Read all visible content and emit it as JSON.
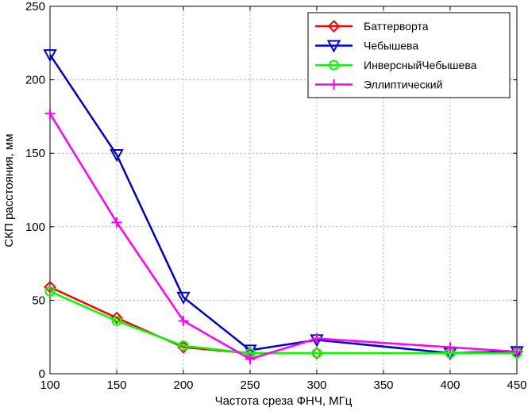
{
  "chart_data": {
    "type": "line",
    "title": "",
    "xlabel": "Частота среза ФНЧ, МГц",
    "ylabel": "СКП расстояния, мм",
    "xlim": [
      100,
      450
    ],
    "ylim": [
      0,
      250
    ],
    "xticks": [
      100,
      150,
      200,
      250,
      300,
      350,
      400,
      450
    ],
    "yticks": [
      0,
      50,
      100,
      150,
      200,
      250
    ],
    "grid": true,
    "legend_position": "top-right",
    "series": [
      {
        "name": "Баттерворта",
        "color": "#ff0000",
        "marker": "diamond",
        "x": [
          100,
          150,
          200,
          250,
          300,
          400,
          450
        ],
        "y": [
          59,
          38,
          18,
          14,
          14,
          14,
          15
        ]
      },
      {
        "name": "Чебышева",
        "color": "#0000cc",
        "marker": "triangle-down",
        "x": [
          100,
          150,
          200,
          250,
          300,
          400,
          450
        ],
        "y": [
          217,
          149,
          52,
          16,
          23,
          14,
          15
        ]
      },
      {
        "name": "ИнверсныйЧебышева",
        "color": "#00ff00",
        "marker": "circle",
        "x": [
          100,
          150,
          200,
          250,
          300,
          400,
          450
        ],
        "y": [
          56,
          36,
          19,
          14,
          14,
          14,
          14
        ]
      },
      {
        "name": "Эллиптический",
        "color": "#ff00ff",
        "marker": "plus",
        "x": [
          100,
          150,
          200,
          250,
          300,
          400,
          450
        ],
        "y": [
          177,
          103,
          36,
          10,
          24,
          18,
          15
        ]
      }
    ]
  }
}
